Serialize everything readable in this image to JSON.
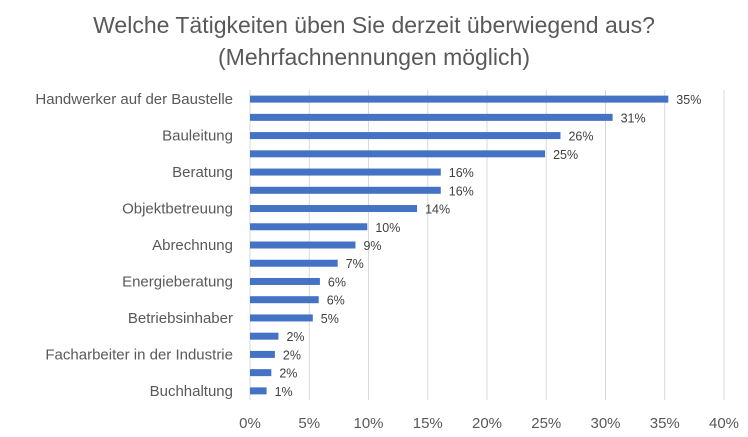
{
  "chart_data": {
    "type": "bar",
    "orientation": "horizontal",
    "title": "Welche Tätigkeiten üben Sie derzeit überwiegend aus?",
    "subtitle": "(Mehrfachnennungen möglich)",
    "xlabel": "",
    "ylabel": "",
    "xlim": [
      0,
      40
    ],
    "x_ticks": [
      "0%",
      "5%",
      "10%",
      "15%",
      "20%",
      "25%",
      "30%",
      "35%",
      "40%"
    ],
    "grid": true,
    "legend": "none",
    "bar_color": "#4472C4",
    "categories": [
      "Handwerker auf der Baustelle",
      "",
      "Bauleitung",
      "",
      "Beratung",
      "",
      "Objektbetreuung",
      "",
      "Abrechnung",
      "",
      "Energieberatung",
      "",
      "Betriebsinhaber",
      "",
      "Facharbeiter in der Industrie",
      "",
      "Buchhaltung"
    ],
    "values": [
      35.3,
      30.6,
      26.2,
      24.9,
      16.1,
      16.1,
      14.1,
      9.9,
      8.9,
      7.4,
      5.9,
      5.8,
      5.3,
      2.4,
      2.1,
      1.8,
      1.4
    ],
    "data_labels": [
      "35%",
      "31%",
      "26%",
      "25%",
      "16%",
      "16%",
      "14%",
      "10%",
      "9%",
      "7%",
      "6%",
      "6%",
      "5%",
      "2%",
      "2%",
      "2%",
      "1%"
    ]
  }
}
